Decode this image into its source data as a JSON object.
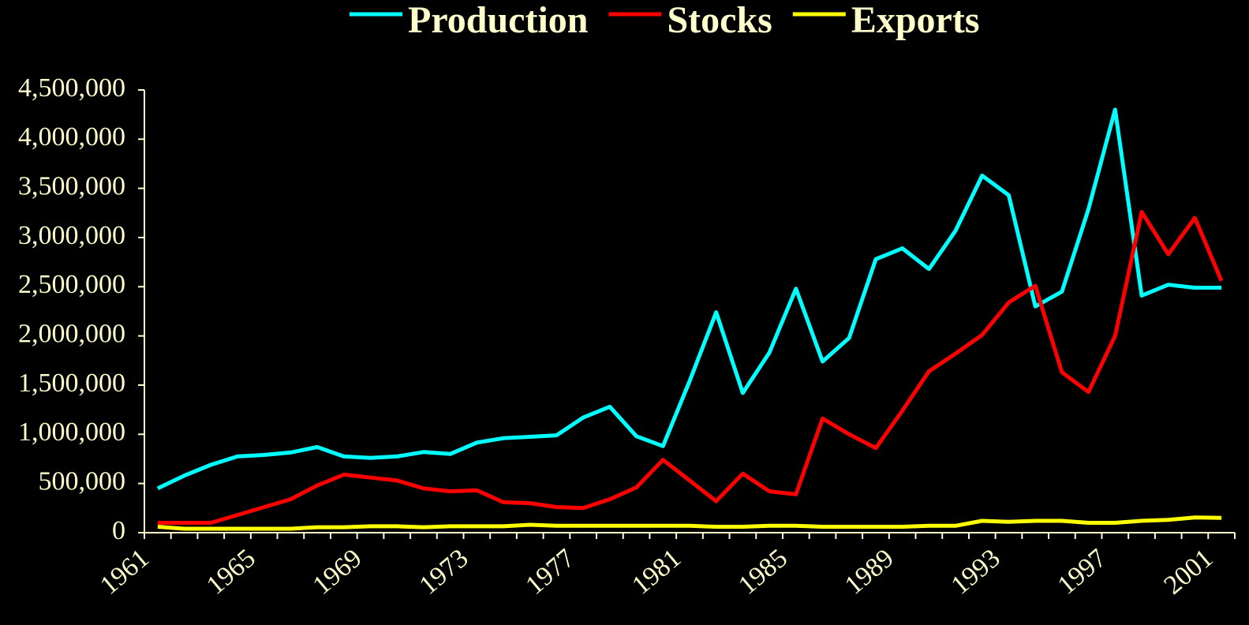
{
  "chart_data": {
    "type": "line",
    "categories": [
      "1961",
      null,
      null,
      null,
      "1965",
      null,
      null,
      null,
      "1969",
      null,
      null,
      null,
      "1973",
      null,
      null,
      null,
      "1977",
      null,
      null,
      null,
      "1981",
      null,
      null,
      null,
      "1985",
      null,
      null,
      null,
      "1989",
      null,
      null,
      null,
      "1993",
      null,
      null,
      null,
      "1997",
      null,
      null,
      null,
      "2001"
    ],
    "series": [
      {
        "name": "Production",
        "color": "#00ffff",
        "values": [
          450000,
          580000,
          690000,
          775000,
          790000,
          815000,
          870000,
          775000,
          760000,
          775000,
          820000,
          800000,
          915000,
          960000,
          975000,
          990000,
          1170000,
          1280000,
          980000,
          880000,
          1540000,
          2240000,
          1420000,
          1830000,
          2480000,
          1740000,
          1980000,
          2780000,
          2890000,
          2680000,
          3070000,
          3630000,
          3430000,
          2300000,
          2450000,
          3290000,
          4300000,
          2410000,
          2520000,
          2490000,
          2490000
        ]
      },
      {
        "name": "Stocks",
        "color": "#ff0000",
        "values": [
          100000,
          100000,
          100000,
          180000,
          260000,
          340000,
          480000,
          590000,
          560000,
          530000,
          450000,
          420000,
          430000,
          310000,
          300000,
          260000,
          250000,
          340000,
          460000,
          740000,
          530000,
          320000,
          600000,
          420000,
          390000,
          1160000,
          1000000,
          860000,
          1240000,
          1640000,
          1820000,
          2010000,
          2340000,
          2510000,
          1630000,
          1430000,
          2000000,
          3260000,
          2830000,
          3200000,
          2560000
        ]
      },
      {
        "name": "Exports",
        "color": "#ffff00",
        "values": [
          60000,
          40000,
          40000,
          40000,
          40000,
          40000,
          55000,
          55000,
          65000,
          65000,
          55000,
          65000,
          65000,
          65000,
          80000,
          70000,
          70000,
          70000,
          70000,
          70000,
          70000,
          60000,
          60000,
          70000,
          70000,
          60000,
          60000,
          60000,
          60000,
          70000,
          70000,
          120000,
          110000,
          120000,
          120000,
          100000,
          100000,
          120000,
          130000,
          155000,
          150000
        ]
      }
    ],
    "ylim": [
      0,
      4500000
    ],
    "yticks": [
      0,
      {
        "value": 500000,
        "label": "500,000"
      },
      {
        "value": 1000000,
        "label": "1,000,000"
      },
      {
        "value": 1500000,
        "label": "1,500,000"
      },
      {
        "value": 2000000,
        "label": "2,000,000"
      },
      {
        "value": 2500000,
        "label": "2,500,000"
      },
      {
        "value": 3000000,
        "label": "3,000,000"
      },
      {
        "value": 3500000,
        "label": "3,500,000"
      },
      {
        "value": 4000000,
        "label": "4,000,000"
      },
      {
        "value": 4500000,
        "label": "4,500,000"
      }
    ],
    "legend": "top"
  }
}
